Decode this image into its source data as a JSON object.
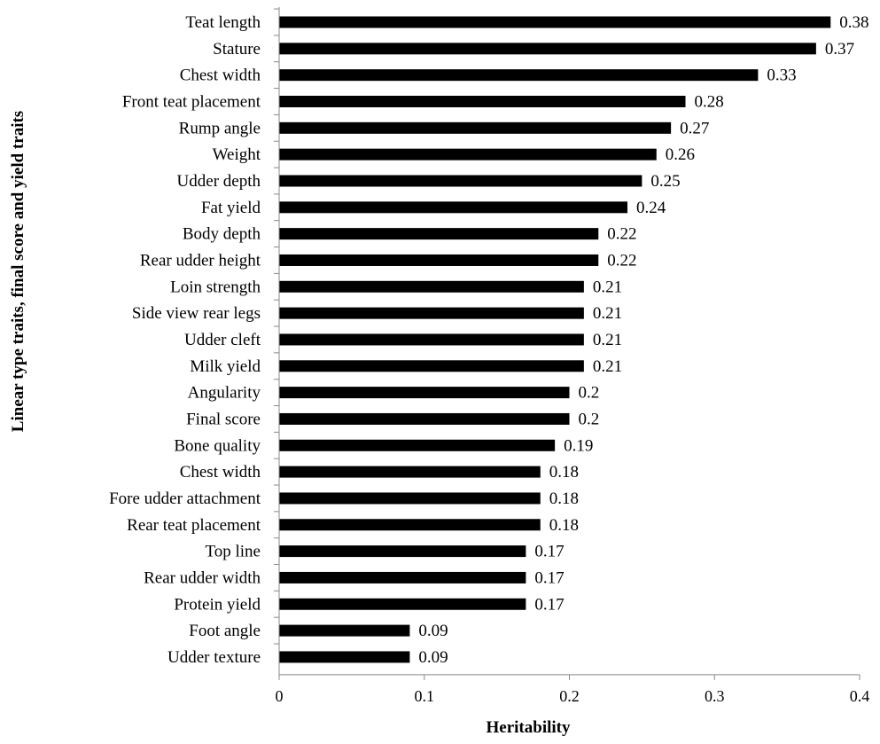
{
  "chart_data": {
    "type": "bar",
    "orientation": "horizontal",
    "categories": [
      "Teat length",
      "Stature",
      "Chest width",
      "Front teat placement",
      "Rump angle",
      "Weight",
      "Udder depth",
      "Fat yield",
      "Body depth",
      "Rear udder height",
      "Loin strength",
      "Side view rear legs",
      "Udder cleft",
      "Milk yield",
      "Angularity",
      "Final score",
      "Bone quality",
      "Chest width",
      "Fore udder attachment",
      "Rear teat placement",
      "Top line",
      "Rear udder width",
      "Protein yield",
      "Foot angle",
      "Udder texture"
    ],
    "values": [
      0.38,
      0.37,
      0.33,
      0.28,
      0.27,
      0.26,
      0.25,
      0.24,
      0.22,
      0.22,
      0.21,
      0.21,
      0.21,
      0.21,
      0.2,
      0.2,
      0.19,
      0.18,
      0.18,
      0.18,
      0.17,
      0.17,
      0.17,
      0.09,
      0.09
    ],
    "value_labels": [
      "0.38",
      "0.37",
      "0.33",
      "0.28",
      "0.27",
      "0.26",
      "0.25",
      "0.24",
      "0.22",
      "0.22",
      "0.21",
      "0.21",
      "0.21",
      "0.21",
      "0.2",
      "0.2",
      "0.19",
      "0.18",
      "0.18",
      "0.18",
      "0.17",
      "0.17",
      "0.17",
      "0.09",
      "0.09"
    ],
    "xlabel": "Heritability",
    "ylabel": "Linear type traits, final score and yield traits",
    "xlim": [
      0,
      0.4
    ],
    "xticks": [
      "0",
      "0.1",
      "0.2",
      "0.3",
      "0.4"
    ],
    "bar_color": "#000000",
    "grid": false,
    "legend": "none"
  }
}
